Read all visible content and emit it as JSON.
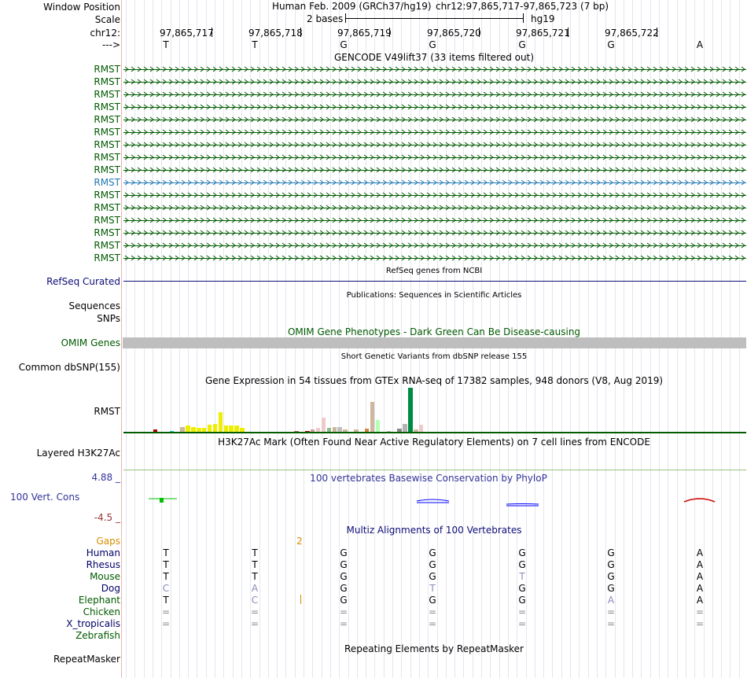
{
  "header": {
    "window_position_label": "Window Position",
    "scale_label": "Scale",
    "chrom_label": "chr12:",
    "strand_label": "--->",
    "assembly": "Human Feb. 2009 (GRCh37/hg19)",
    "position": "chr12:97,865,717-97,865,723 (7 bp)",
    "scale_text": "2 bases",
    "scale_db": "hg19",
    "coordinates": [
      "97,865,717",
      "97,865,718",
      "97,865,719",
      "97,865,720",
      "97,865,721",
      "97,865,722"
    ],
    "bases": [
      "T",
      "T",
      "G",
      "G",
      "G",
      "G",
      "A"
    ]
  },
  "gencode": {
    "title": "GENCODE V49lift37 (33 items filtered out)",
    "genes": [
      "RMST",
      "RMST",
      "RMST",
      "RMST",
      "RMST",
      "RMST",
      "RMST",
      "RMST",
      "RMST",
      "RMST",
      "RMST",
      "RMST",
      "RMST",
      "RMST",
      "RMST",
      "RMST"
    ],
    "highlight_index": 9
  },
  "refseq": {
    "title": "RefSeq genes from NCBI",
    "label": "RefSeq Curated"
  },
  "publications": {
    "title": "Publications: Sequences in Scientific Articles",
    "label1": "Sequences",
    "label2": "SNPs"
  },
  "omim": {
    "title": "OMIM Gene Phenotypes - Dark Green Can Be Disease-causing",
    "label": "OMIM Genes"
  },
  "dbsnp": {
    "title": "Short Genetic Variants from dbSNP release 155",
    "label": "Common dbSNP(155)"
  },
  "gtex": {
    "title": "Gene Expression in 54 tissues from GTEx RNA-seq of 17382 samples, 948 donors (V8, Aug 2019)",
    "label": "RMST",
    "chart_data": {
      "type": "bar",
      "values": [
        0,
        0,
        2,
        0,
        0,
        1,
        0,
        5,
        6,
        5,
        4,
        4,
        7,
        8,
        20,
        6,
        6,
        6,
        4,
        0,
        0,
        0,
        0,
        0,
        0,
        0,
        0,
        0,
        1,
        0,
        1,
        2,
        4,
        14,
        4,
        5,
        5,
        2,
        0,
        2,
        0,
        3,
        30,
        12,
        0,
        1,
        0,
        3,
        8,
        44,
        2,
        7,
        0,
        0
      ],
      "colors": [
        "#ffa54f",
        "#ffa54f",
        "#aa0000",
        "#ffa54f",
        "#ff69b4",
        "#00cdcd",
        "#9ac0cd",
        "#cdb79e",
        "#eeee00",
        "#eeee00",
        "#eeee00",
        "#eeee00",
        "#eeee00",
        "#eeee00",
        "#eeee00",
        "#eeee00",
        "#eeee00",
        "#eeee00",
        "#eeee00",
        "#8b1c62",
        "#ff8c00",
        "#1e90ff",
        "#cdb79e",
        "#b452cd",
        "#7a67ee",
        "#00cd00",
        "#9ac0cd",
        "#cdc673",
        "#9c6b4e",
        "#cdb79e",
        "#aa0000",
        "#cd9b9b",
        "#eecaca",
        "#eecaca",
        "#8fbc8f",
        "#cdb79e",
        "#bfbfbf",
        "#cdb79e",
        "#eecaca",
        "#cdb79e",
        "#a6a6a6",
        "#cd853f",
        "#cdb79e",
        "#b3ffb3",
        "#aaeeaa",
        "#cdb79e",
        "#eecaca",
        "#888888",
        "#b3b3b3",
        "#008b45",
        "#cdb79e",
        "#eecaca",
        "#ffd700",
        "#cdb79e"
      ]
    }
  },
  "h3k27ac": {
    "title": "H3K27Ac Mark (Often Found Near Active Regulatory Elements) on 7 cell lines from ENCODE",
    "label": "Layered H3K27Ac"
  },
  "phylop": {
    "title": "100 vertebrates Basewise Conservation by PhyloP",
    "label": "100 Vert. Cons",
    "max": "4.88 _",
    "min": "-4.5 _"
  },
  "multiz": {
    "title": "Multiz Alignments of 100 Vertebrates",
    "gaps_label": "Gaps",
    "gap_count": "2",
    "species": [
      {
        "name": "Human",
        "color": "#000066",
        "bases": [
          "T",
          "T",
          "G",
          "G",
          "G",
          "G",
          "A"
        ]
      },
      {
        "name": "Rhesus",
        "color": "#000066",
        "bases": [
          "T",
          "T",
          "G",
          "G",
          "G",
          "G",
          "A"
        ]
      },
      {
        "name": "Mouse",
        "color": "#005a00",
        "bases": [
          "T",
          "T",
          "G",
          "G",
          "T",
          "G",
          "A"
        ]
      },
      {
        "name": "Dog",
        "color": "#000066",
        "bases": [
          "C",
          "A",
          "G",
          "T",
          "G",
          "G",
          "A"
        ]
      },
      {
        "name": "Elephant",
        "color": "#005a00",
        "bases": [
          "T",
          "C",
          "G",
          "G",
          "G",
          "A",
          "A"
        ]
      },
      {
        "name": "Chicken",
        "color": "#005a00",
        "bases": [
          "=",
          "=",
          "=",
          "=",
          "=",
          "=",
          "="
        ]
      },
      {
        "name": "X_tropicalis",
        "color": "#000066",
        "bases": [
          "=",
          "=",
          "=",
          "=",
          "=",
          "=",
          "="
        ]
      },
      {
        "name": "Zebrafish",
        "color": "#005a00",
        "bases": [
          "",
          "",
          "",
          "",
          "",
          "",
          ""
        ]
      }
    ]
  },
  "repeatmasker": {
    "title": "Repeating Elements by RepeatMasker",
    "label": "RepeatMasker"
  }
}
